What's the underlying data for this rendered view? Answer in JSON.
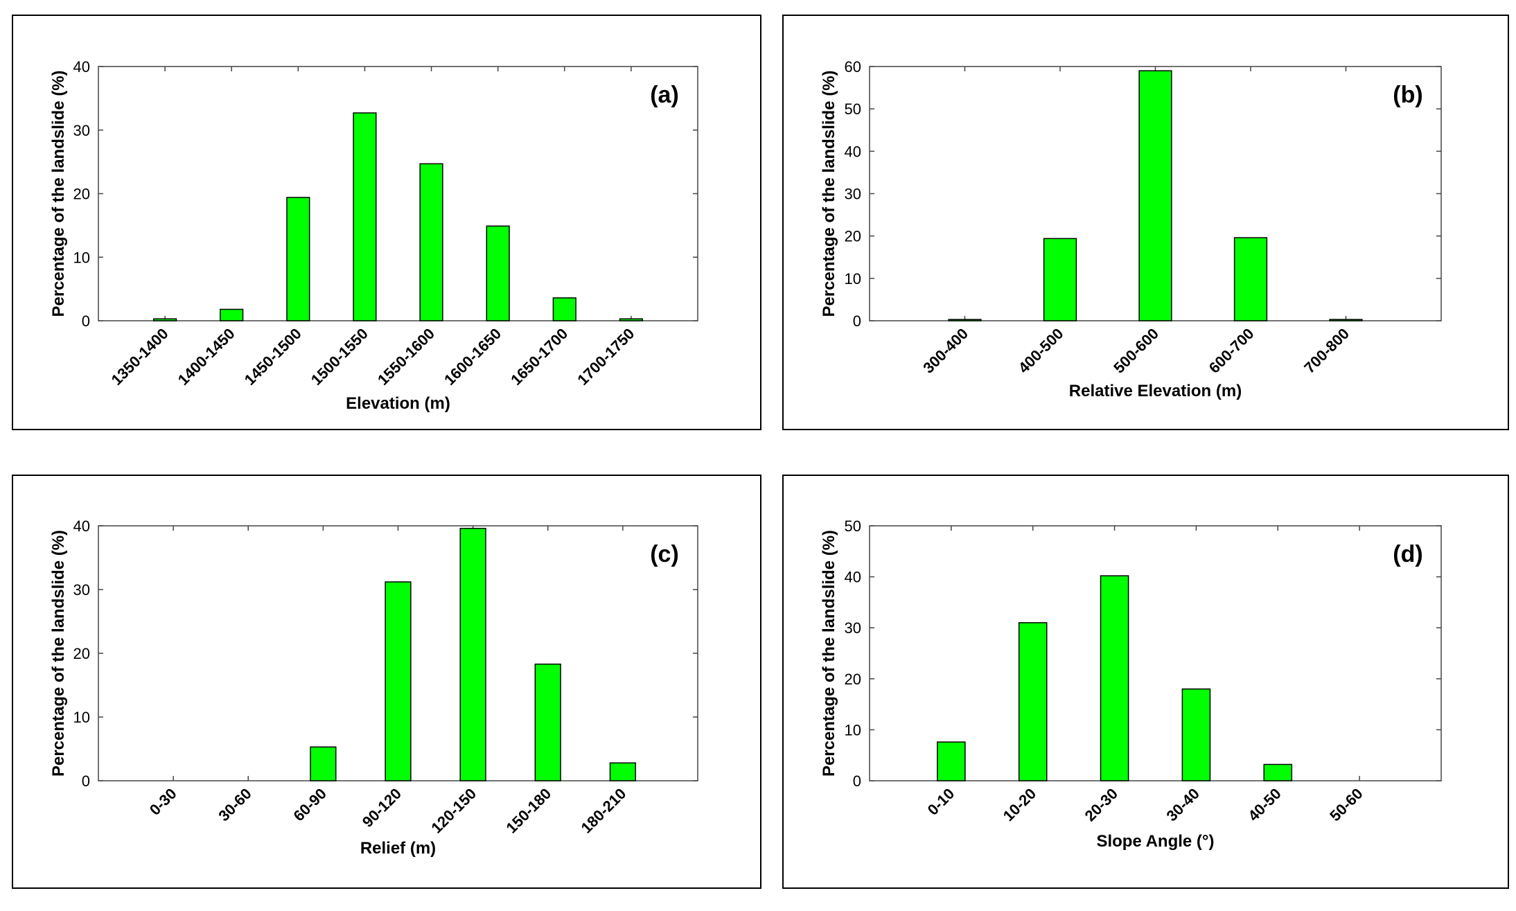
{
  "chart_data": [
    {
      "type": "bar",
      "panel_label": "(a)",
      "categories": [
        "1350-1400",
        "1400-1450",
        "1450-1500",
        "1500-1550",
        "1550-1600",
        "1600-1650",
        "1650-1700",
        "1700-1750"
      ],
      "values": [
        0.3,
        1.8,
        19.4,
        32.7,
        24.7,
        14.9,
        3.6,
        0.3
      ],
      "xlabel": "Elevation (m)",
      "ylabel": "Percentage of the landslide (%)",
      "ylim": [
        0,
        40
      ],
      "yticks": [
        0,
        10,
        20,
        30,
        40
      ],
      "bar_color": "#00ff00"
    },
    {
      "type": "bar",
      "panel_label": "(b)",
      "categories": [
        "300-400",
        "400-500",
        "500-600",
        "600-700",
        "700-800"
      ],
      "values": [
        0.3,
        19.4,
        59.0,
        19.6,
        0.3
      ],
      "xlabel": "Relative Elevation (m)",
      "ylabel": "Percentage of the landslide (%)",
      "ylim": [
        0,
        60
      ],
      "yticks": [
        0,
        10,
        20,
        30,
        40,
        50,
        60
      ],
      "bar_color": "#00ff00"
    },
    {
      "type": "bar",
      "panel_label": "(c)",
      "categories": [
        "0-30",
        "30-60",
        "60-90",
        "90-120",
        "120-150",
        "150-180",
        "180-210"
      ],
      "values": [
        0,
        0,
        5.3,
        31.2,
        39.6,
        18.3,
        2.8
      ],
      "xlabel": "Relief (m)",
      "ylabel": "Percentage of the landslide (%)",
      "ylim": [
        0,
        40
      ],
      "yticks": [
        0,
        10,
        20,
        30,
        40
      ],
      "bar_color": "#00ff00"
    },
    {
      "type": "bar",
      "panel_label": "(d)",
      "categories": [
        "0-10",
        "10-20",
        "20-30",
        "30-40",
        "40-50",
        "50-60"
      ],
      "values": [
        7.6,
        31.0,
        40.2,
        18.0,
        3.2,
        0
      ],
      "xlabel": "Slope Angle (°)",
      "ylabel": "Percentage of the landslide (%)",
      "ylim": [
        0,
        50
      ],
      "yticks": [
        0,
        10,
        20,
        30,
        40,
        50
      ],
      "bar_color": "#00ff00"
    }
  ]
}
